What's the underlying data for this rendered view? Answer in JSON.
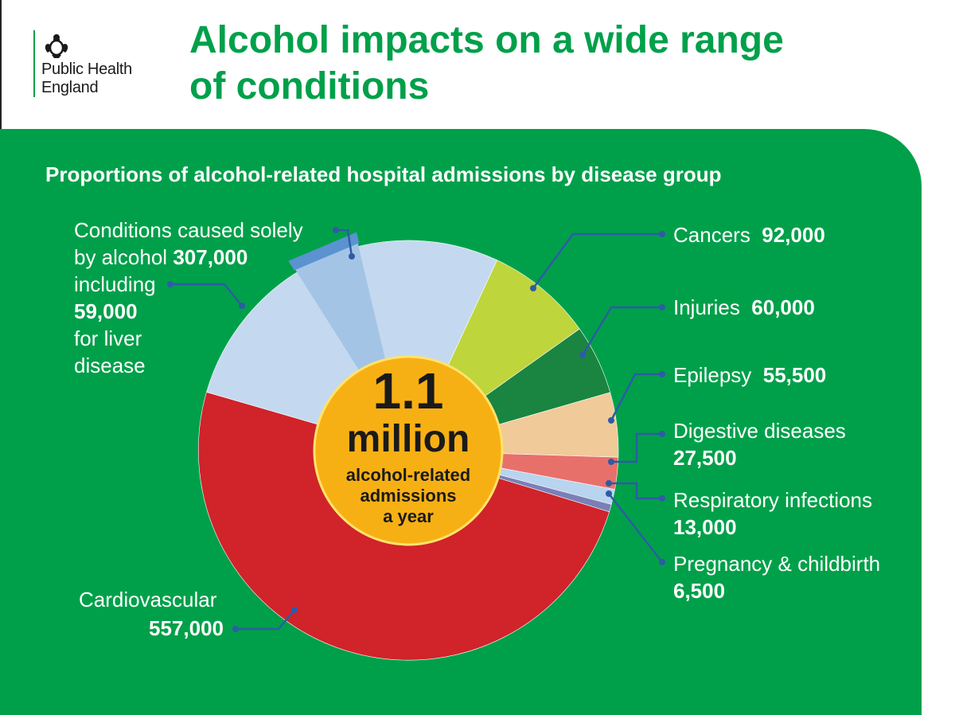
{
  "header": {
    "logo_line1": "Public Health",
    "logo_line2": "England",
    "title_line1": "Alcohol impacts on a wide range",
    "title_line2": "of conditions",
    "crest_icon": "royal-crest-icon"
  },
  "colors": {
    "brand_green": "#00a04a",
    "center_yellow": "#f7b014",
    "leader_blue": "#2e5ba6"
  },
  "chart_data": {
    "type": "pie",
    "title": "Proportions of alcohol-related hospital admissions by disease group",
    "center": {
      "big_value": "1.1",
      "big_unit": "million",
      "caption_line1": "alcohol-related",
      "caption_line2": "admissions",
      "caption_line3": "a year"
    },
    "slices": [
      {
        "name": "Cancers",
        "value": 92000,
        "display": "92,000",
        "color": "#bed53b"
      },
      {
        "name": "Injuries",
        "value": 60000,
        "display": "60,000",
        "color": "#1a8441"
      },
      {
        "name": "Epilepsy",
        "value": 55500,
        "display": "55,500",
        "color": "#f0ca98"
      },
      {
        "name": "Digestive diseases",
        "value": 27500,
        "display": "27,500",
        "color": "#e8706a"
      },
      {
        "name": "Respiratory infections",
        "value": 13000,
        "display": "13,000",
        "color": "#b8d4ee"
      },
      {
        "name": "Pregnancy & childbirth",
        "value": 6500,
        "display": "6,500",
        "color": "#7b7fb8"
      },
      {
        "name": "Cardiovascular",
        "value": 557000,
        "display": "557,000",
        "color": "#d0232a"
      },
      {
        "name": "Conditions caused solely by alcohol",
        "value": 307000,
        "display": "307,000",
        "color": "#c4d9ef",
        "sub_value": 59000,
        "sub_display": "59,000",
        "sub_name": "for liver disease",
        "sub_color": "#a4c4e6"
      }
    ]
  },
  "labels": {
    "solely_line1": "Conditions caused solely",
    "solely_line2": "by alcohol",
    "solely_line3": "including",
    "solely_line5": "for liver",
    "solely_line6": "disease"
  }
}
